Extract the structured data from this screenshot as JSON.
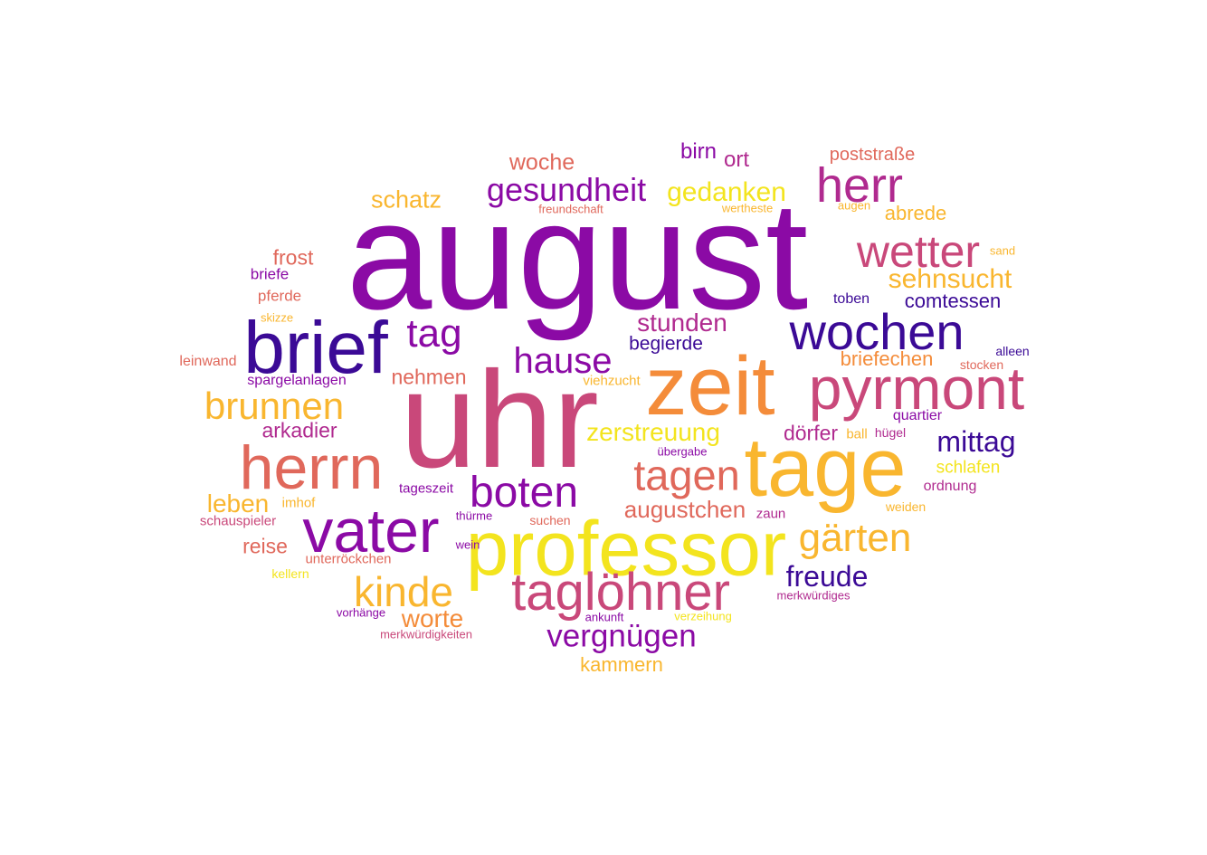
{
  "palette": {
    "dark_indigo": "#3b0a96",
    "purple": "#8b0aa5",
    "magenta": "#b02a8f",
    "rose": "#c9487a",
    "coral": "#e0685b",
    "orange": "#f48c3a",
    "amber": "#f9b62f",
    "yellow": "#f3e41e"
  },
  "words": [
    {
      "text": "august",
      "color": "purple"
    },
    {
      "text": "uhr",
      "color": "rose"
    },
    {
      "text": "zeit",
      "color": "orange"
    },
    {
      "text": "tage",
      "color": "amber"
    },
    {
      "text": "professor",
      "color": "yellow"
    },
    {
      "text": "brief",
      "color": "dark_indigo"
    },
    {
      "text": "herrn",
      "color": "coral"
    },
    {
      "text": "vater",
      "color": "purple"
    },
    {
      "text": "pyrmont",
      "color": "rose"
    },
    {
      "text": "wochen",
      "color": "dark_indigo"
    },
    {
      "text": "taglöhner",
      "color": "rose"
    },
    {
      "text": "herr",
      "color": "magenta"
    },
    {
      "text": "wetter",
      "color": "rose"
    },
    {
      "text": "boten",
      "color": "purple"
    },
    {
      "text": "tagen",
      "color": "coral"
    },
    {
      "text": "brunnen",
      "color": "amber"
    },
    {
      "text": "kinde",
      "color": "amber"
    },
    {
      "text": "gärten",
      "color": "amber"
    },
    {
      "text": "tag",
      "color": "purple"
    },
    {
      "text": "hause",
      "color": "purple"
    },
    {
      "text": "gesundheit",
      "color": "purple"
    },
    {
      "text": "vergnügen",
      "color": "purple"
    },
    {
      "text": "gedanken",
      "color": "yellow"
    },
    {
      "text": "sehnsucht",
      "color": "amber"
    },
    {
      "text": "freude",
      "color": "dark_indigo"
    },
    {
      "text": "mittag",
      "color": "dark_indigo"
    },
    {
      "text": "zerstreuung",
      "color": "yellow"
    },
    {
      "text": "augustchen",
      "color": "coral"
    },
    {
      "text": "stunden",
      "color": "magenta"
    },
    {
      "text": "worte",
      "color": "orange"
    },
    {
      "text": "leben",
      "color": "amber"
    },
    {
      "text": "schatz",
      "color": "amber"
    },
    {
      "text": "woche",
      "color": "coral"
    },
    {
      "text": "birn",
      "color": "purple"
    },
    {
      "text": "ort",
      "color": "magenta"
    },
    {
      "text": "poststraße",
      "color": "coral"
    },
    {
      "text": "abrede",
      "color": "amber"
    },
    {
      "text": "comtessen",
      "color": "dark_indigo"
    },
    {
      "text": "briefechen",
      "color": "orange"
    },
    {
      "text": "begierde",
      "color": "dark_indigo"
    },
    {
      "text": "nehmen",
      "color": "coral"
    },
    {
      "text": "arkadier",
      "color": "magenta"
    },
    {
      "text": "dörfer",
      "color": "magenta"
    },
    {
      "text": "reise",
      "color": "coral"
    },
    {
      "text": "kammern",
      "color": "amber"
    },
    {
      "text": "frost",
      "color": "coral"
    },
    {
      "text": "schlafen",
      "color": "yellow"
    },
    {
      "text": "briefe",
      "color": "purple"
    },
    {
      "text": "pferde",
      "color": "coral"
    },
    {
      "text": "skizze",
      "color": "amber"
    },
    {
      "text": "leinwand",
      "color": "coral"
    },
    {
      "text": "spargelanlagen",
      "color": "purple"
    },
    {
      "text": "viehzucht",
      "color": "amber"
    },
    {
      "text": "toben",
      "color": "dark_indigo"
    },
    {
      "text": "sand",
      "color": "amber"
    },
    {
      "text": "alleen",
      "color": "dark_indigo"
    },
    {
      "text": "stocken",
      "color": "coral"
    },
    {
      "text": "quartier",
      "color": "purple"
    },
    {
      "text": "ball",
      "color": "amber"
    },
    {
      "text": "hügel",
      "color": "magenta"
    },
    {
      "text": "ordnung",
      "color": "magenta"
    },
    {
      "text": "weiden",
      "color": "amber"
    },
    {
      "text": "übergabe",
      "color": "purple"
    },
    {
      "text": "tageszeit",
      "color": "purple"
    },
    {
      "text": "imhof",
      "color": "amber"
    },
    {
      "text": "schauspieler",
      "color": "rose"
    },
    {
      "text": "thürme",
      "color": "purple"
    },
    {
      "text": "suchen",
      "color": "coral"
    },
    {
      "text": "zaun",
      "color": "magenta"
    },
    {
      "text": "wein",
      "color": "purple"
    },
    {
      "text": "unterröckchen",
      "color": "coral"
    },
    {
      "text": "kellern",
      "color": "yellow"
    },
    {
      "text": "merkwürdiges",
      "color": "magenta"
    },
    {
      "text": "vorhänge",
      "color": "purple"
    },
    {
      "text": "ankunft",
      "color": "purple"
    },
    {
      "text": "verzeihung",
      "color": "yellow"
    },
    {
      "text": "merkwürdigkeiten",
      "color": "rose"
    },
    {
      "text": "freundschaft",
      "color": "coral"
    },
    {
      "text": "wertheste",
      "color": "amber"
    },
    {
      "text": "augen",
      "color": "amber"
    }
  ]
}
